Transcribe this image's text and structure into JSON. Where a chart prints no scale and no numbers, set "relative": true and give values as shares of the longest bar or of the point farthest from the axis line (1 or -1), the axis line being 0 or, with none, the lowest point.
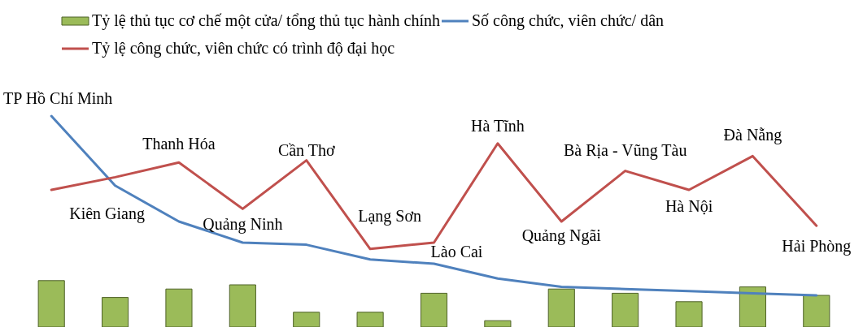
{
  "chart_data": {
    "type": "bar",
    "relative": true,
    "legend": "top left",
    "categories": [
      "TP Hồ Chí Minh",
      "Kiên Giang",
      "Thanh Hóa",
      "Quảng Ninh",
      "Cần Thơ",
      "Lạng Sơn",
      "Lào Cai",
      "Hà Tĩnh",
      "Quảng Ngãi",
      "Bà Rịa - Vũng Tàu",
      "Hà Nội",
      "Đà Nẵng",
      "Hải Phòng"
    ],
    "series": [
      {
        "name": "Tỷ lệ thủ tục cơ chế một cửa/ tổng thủ tục hành chính",
        "color": "#9bbb59",
        "values": [
          0.22,
          0.14,
          0.18,
          0.2,
          0.07,
          0.07,
          0.16,
          0.03,
          0.18,
          0.16,
          0.12,
          0.19,
          0.15
        ]
      },
      {
        "name": "Số công chức, viên chức/ dân",
        "type": "line",
        "color": "#4f81bd",
        "values": [
          1.0,
          0.67,
          0.5,
          0.4,
          0.39,
          0.32,
          0.3,
          0.23,
          0.19,
          0.18,
          0.17,
          0.16,
          0.15
        ]
      },
      {
        "name": "Tỷ lệ công chức, viên chức có trình độ đại học",
        "type": "line",
        "color": "#c0504d",
        "values": [
          0.65,
          0.71,
          0.78,
          0.56,
          0.79,
          0.37,
          0.4,
          0.87,
          0.5,
          0.74,
          0.65,
          0.81,
          0.48
        ]
      }
    ]
  }
}
